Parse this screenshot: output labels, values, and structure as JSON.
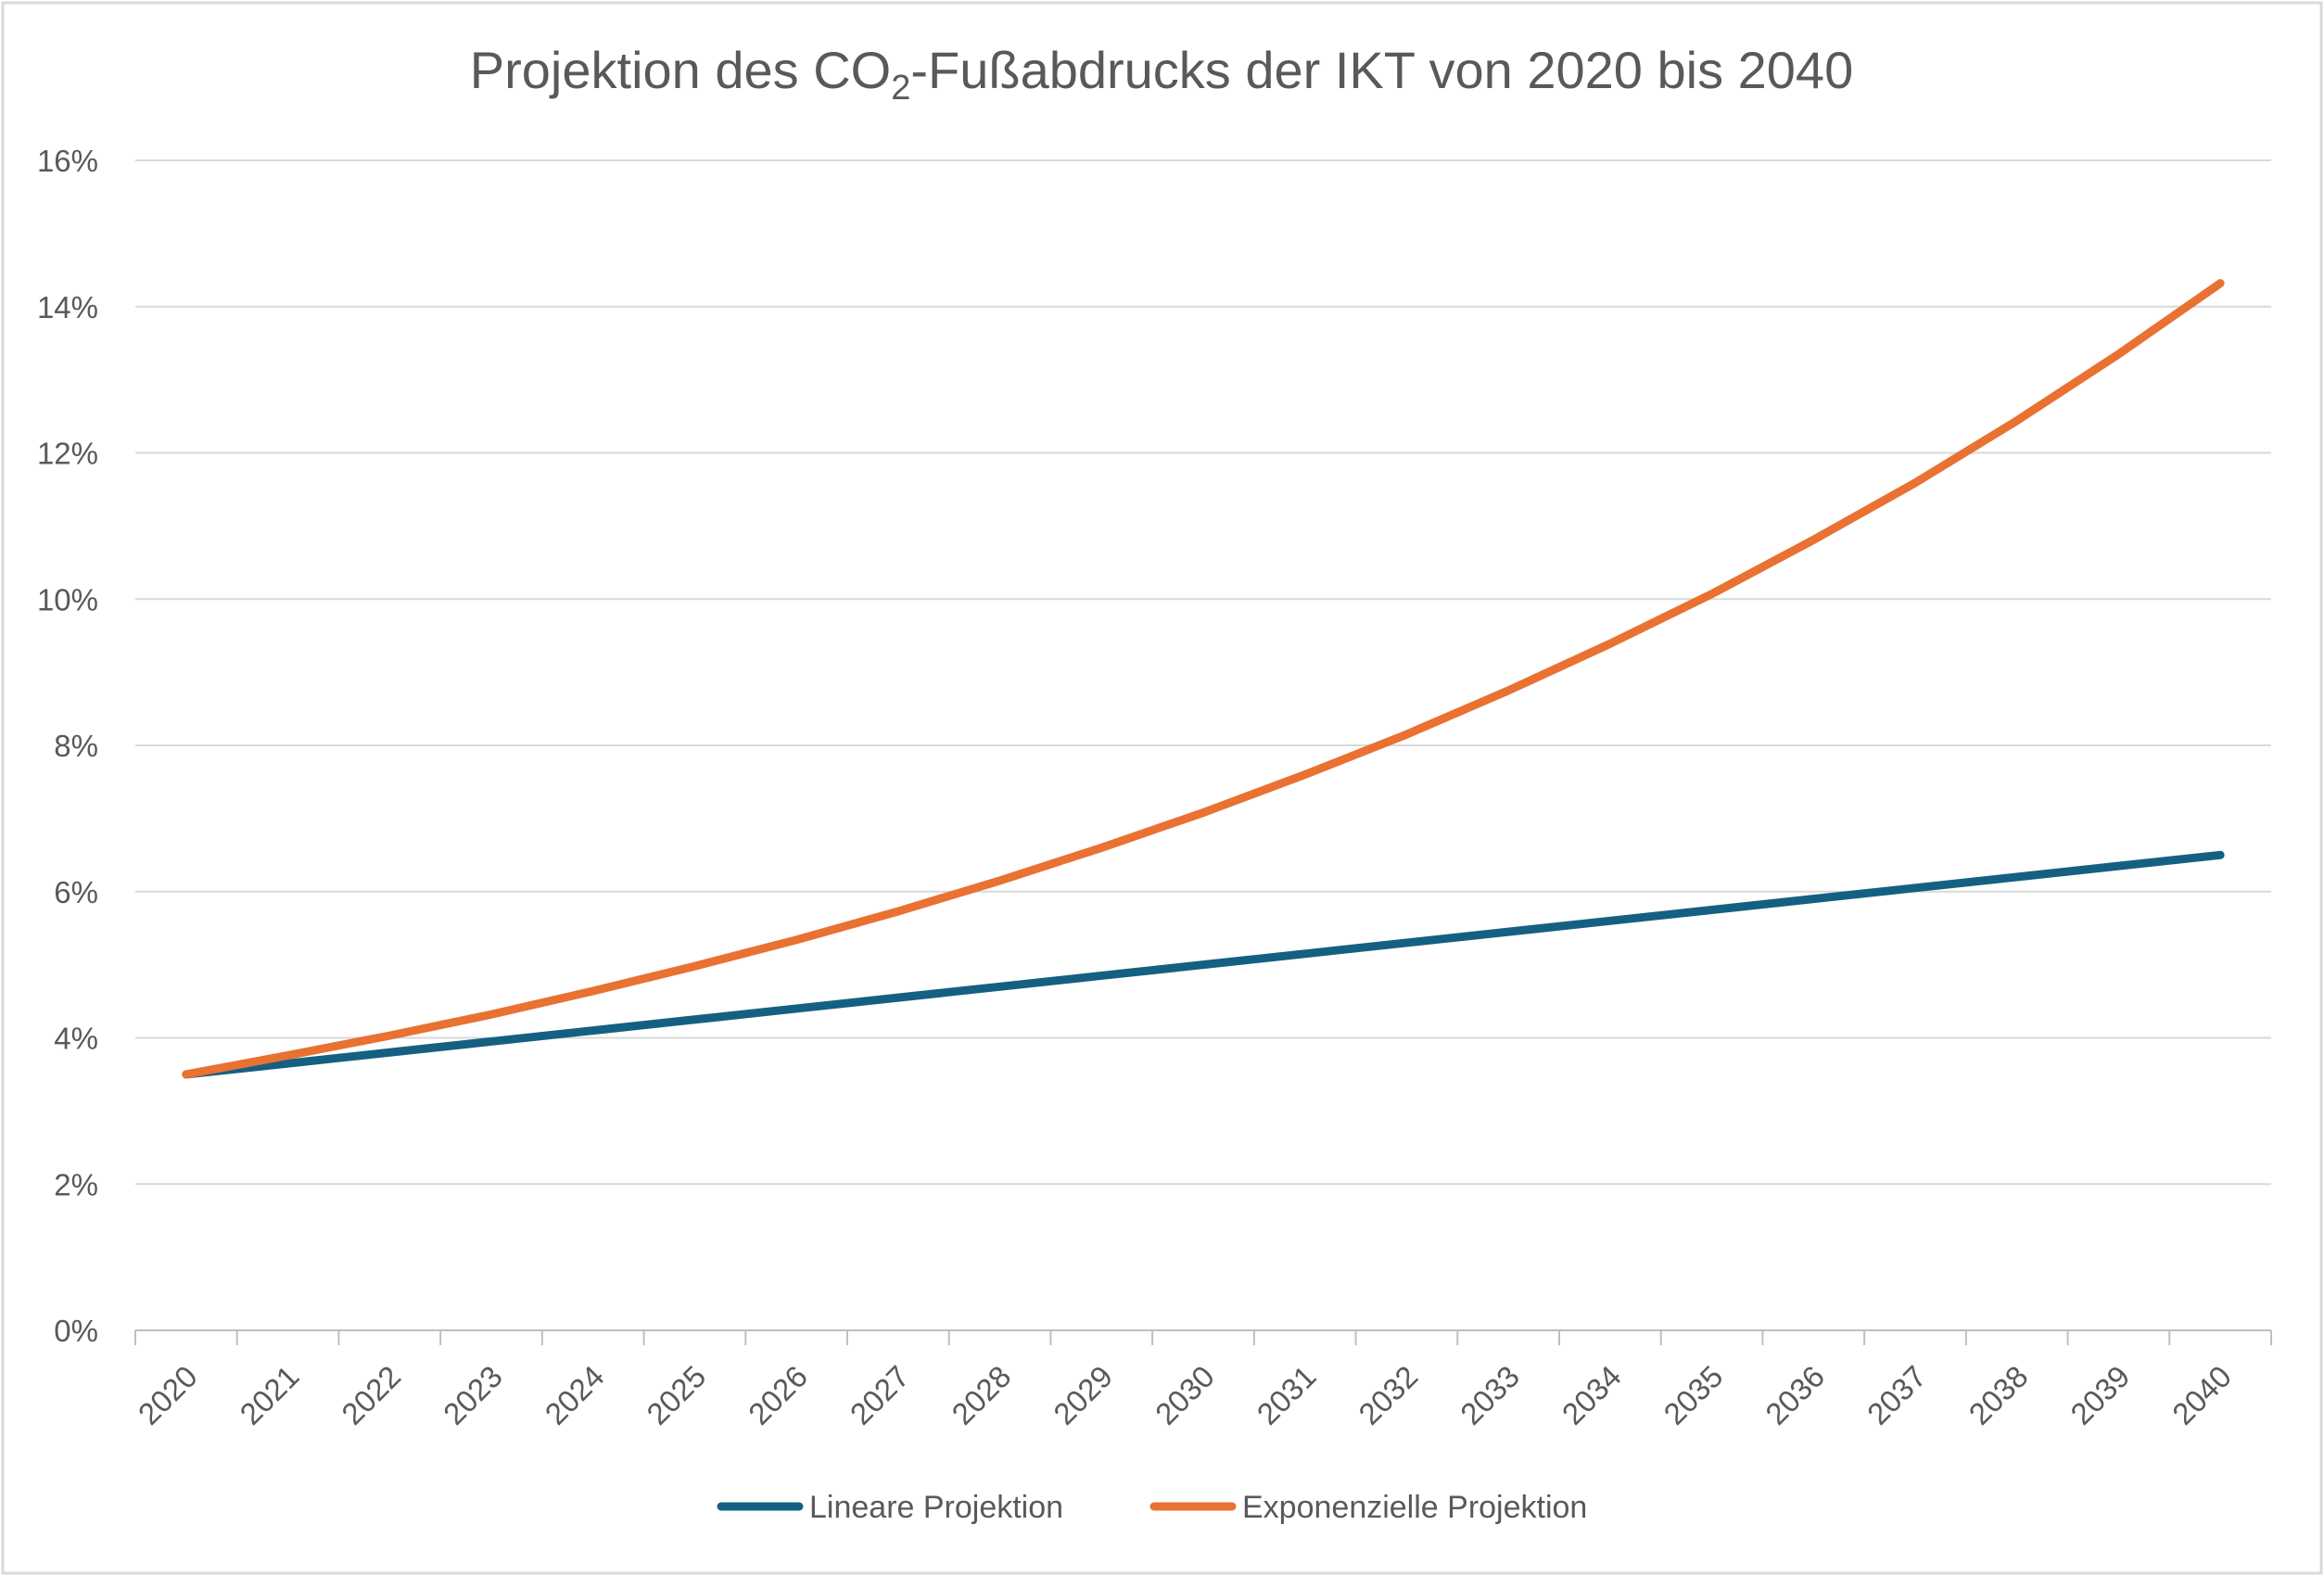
{
  "chart_data": {
    "type": "line",
    "title": {
      "prefix": "Projektion des CO",
      "subscript": "2",
      "suffix": "-Fußabdrucks der IKT von 2020 bis 2040"
    },
    "xlabel": "",
    "ylabel": "",
    "ylim": [
      0,
      16
    ],
    "y_ticks": [
      "0%",
      "2%",
      "4%",
      "6%",
      "8%",
      "10%",
      "12%",
      "14%",
      "16%"
    ],
    "y_tick_values": [
      0,
      2,
      4,
      6,
      8,
      10,
      12,
      14,
      16
    ],
    "grid": true,
    "legend_position": "bottom",
    "categories": [
      "2020",
      "2021",
      "2022",
      "2023",
      "2024",
      "2025",
      "2026",
      "2027",
      "2028",
      "2029",
      "2030",
      "2031",
      "2032",
      "2033",
      "2034",
      "2035",
      "2036",
      "2037",
      "2038",
      "2039",
      "2040"
    ],
    "series": [
      {
        "name": "Lineare Projektion",
        "color": "#156082",
        "values": [
          3.5,
          3.65,
          3.8,
          3.95,
          4.1,
          4.25,
          4.4,
          4.55,
          4.7,
          4.85,
          5.0,
          5.15,
          5.3,
          5.45,
          5.6,
          5.75,
          5.9,
          6.05,
          6.2,
          6.35,
          6.5
        ]
      },
      {
        "name": "Exponenzielle Projektion",
        "color": "#E97132",
        "values": [
          3.5,
          3.76,
          4.03,
          4.32,
          4.64,
          4.98,
          5.34,
          5.73,
          6.15,
          6.6,
          7.08,
          7.6,
          8.15,
          8.75,
          9.39,
          10.07,
          10.81,
          11.59,
          12.44,
          13.35,
          14.32
        ]
      }
    ]
  }
}
